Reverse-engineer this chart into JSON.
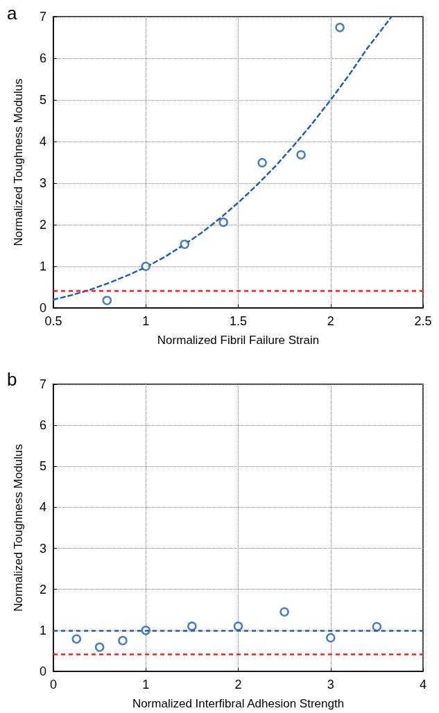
{
  "chart_data": [
    {
      "type": "scatter",
      "annotations": [
        "a"
      ],
      "xlabel": "Normalized Fibril Failure Strain",
      "ylabel": "Normalized Toughness Modulus",
      "xlim": [
        0.5,
        2.5
      ],
      "xticks": [
        0.5,
        1,
        1.5,
        2,
        2.5
      ],
      "ylim": [
        0,
        7
      ],
      "yticks": [
        0,
        1,
        2,
        3,
        4,
        5,
        6,
        7
      ],
      "grid": true,
      "marker": "circle",
      "series": [
        {
          "type": "scatter",
          "color": "#1f5fb0",
          "x": [
            0.79,
            1.0,
            1.21,
            1.42,
            1.63,
            1.84,
            2.05
          ],
          "values": [
            0.18,
            1.0,
            1.53,
            2.06,
            3.49,
            3.68,
            6.74
          ]
        },
        {
          "type": "line",
          "color": "#1f5fb0",
          "line_style": "dashed",
          "marker": "none",
          "x": [
            0.5,
            0.6,
            0.7,
            0.8,
            0.9,
            1.0,
            1.1,
            1.2,
            1.3,
            1.4,
            1.5,
            1.6,
            1.7,
            1.8,
            1.9,
            2.0,
            2.1,
            2.2,
            2.33
          ],
          "values": [
            0.2,
            0.31,
            0.44,
            0.6,
            0.78,
            0.98,
            1.22,
            1.5,
            1.8,
            2.15,
            2.53,
            2.95,
            3.4,
            3.9,
            4.43,
            5.0,
            5.6,
            6.25,
            7.0
          ]
        }
      ],
      "ref_lines": [
        {
          "axis": "y",
          "value": 0.41,
          "color": "#ff1a1a",
          "line_style": "dashed"
        }
      ]
    },
    {
      "type": "scatter",
      "annotations": [
        "b"
      ],
      "xlabel": "Normalized Interfibral Adhesion Strength",
      "ylabel": "Normalized Toughness Modulus",
      "xlim": [
        0,
        4
      ],
      "xticks": [
        0,
        1,
        2,
        3,
        4
      ],
      "ylim": [
        0,
        7
      ],
      "yticks": [
        0,
        1,
        2,
        3,
        4,
        5,
        6,
        7
      ],
      "grid": true,
      "marker": "circle",
      "series": [
        {
          "type": "scatter",
          "color": "#1f5fb0",
          "x": [
            0.25,
            0.5,
            0.75,
            1.0,
            1.5,
            2.0,
            2.5,
            3.0,
            3.5
          ],
          "values": [
            0.79,
            0.59,
            0.75,
            1.0,
            1.1,
            1.1,
            1.45,
            0.82,
            1.09
          ]
        }
      ],
      "ref_lines": [
        {
          "axis": "y",
          "value": 1.0,
          "color": "#1f5fb0",
          "line_style": "dashed"
        },
        {
          "axis": "y",
          "value": 0.42,
          "color": "#ff1a1a",
          "line_style": "dashed"
        }
      ]
    }
  ]
}
